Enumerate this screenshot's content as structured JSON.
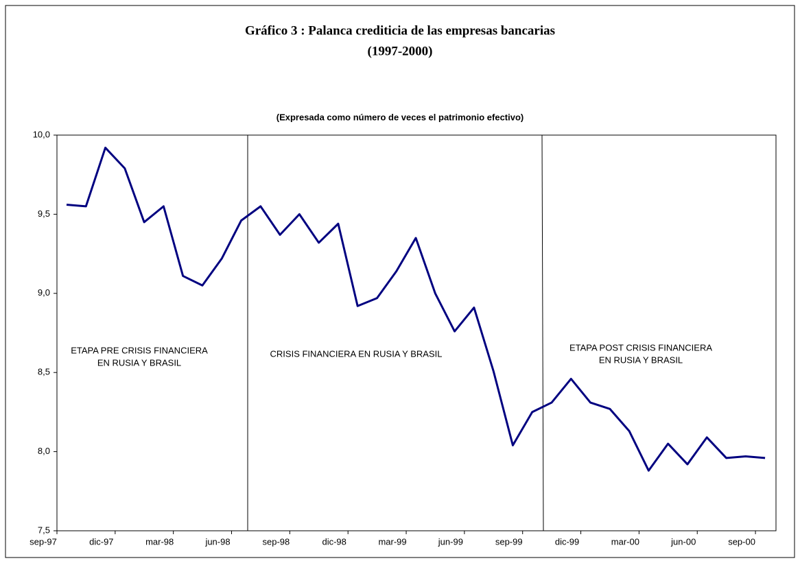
{
  "chart_data": {
    "type": "line",
    "title": [
      "Gráfico 3 : Palanca crediticia de las empresas bancarias",
      "(1997-2000)"
    ],
    "subtitle": "(Expresada como número de veces el patrimonio efectivo)",
    "categories": [
      "sep-97",
      null,
      null,
      "dic-97",
      null,
      null,
      "mar-98",
      null,
      null,
      "jun-98",
      null,
      null,
      "sep-98",
      null,
      null,
      "dic-98",
      null,
      null,
      "mar-99",
      null,
      null,
      "jun-99",
      null,
      null,
      "sep-99",
      null,
      null,
      "dic-99",
      null,
      null,
      "mar-00",
      null,
      null,
      "jun-00",
      null,
      null,
      "sep-00"
    ],
    "series": [
      {
        "color": "#000080",
        "values": [
          9.56,
          9.55,
          9.92,
          9.79,
          9.45,
          9.55,
          9.11,
          9.05,
          9.22,
          9.46,
          9.55,
          9.37,
          9.5,
          9.32,
          9.44,
          8.92,
          8.97,
          9.14,
          9.35,
          9.0,
          8.76,
          8.91,
          8.51,
          8.04,
          8.25,
          8.31,
          8.46,
          8.31,
          8.27,
          8.13,
          7.88,
          8.05,
          7.92,
          8.09,
          7.96,
          7.97,
          7.96
        ]
      }
    ],
    "ylim": [
      7.5,
      10.0
    ],
    "yticks": [
      {
        "value": 7.5,
        "label": "7,5"
      },
      {
        "value": 8.0,
        "label": "8,0"
      },
      {
        "value": 8.5,
        "label": "8,5"
      },
      {
        "value": 9.0,
        "label": "9,0"
      },
      {
        "value": 9.5,
        "label": "9,5"
      },
      {
        "value": 10.0,
        "label": "10,0"
      }
    ],
    "annotations": [
      [
        "ETAPA PRE CRISIS FINANCIERA",
        "EN RUSIA Y BRASIL"
      ],
      [
        "CRISIS FINANCIERA EN RUSIA Y BRASIL"
      ],
      [
        "ETAPA POST CRISIS FINANCIERA",
        "EN RUSIA Y BRASIL"
      ]
    ]
  }
}
